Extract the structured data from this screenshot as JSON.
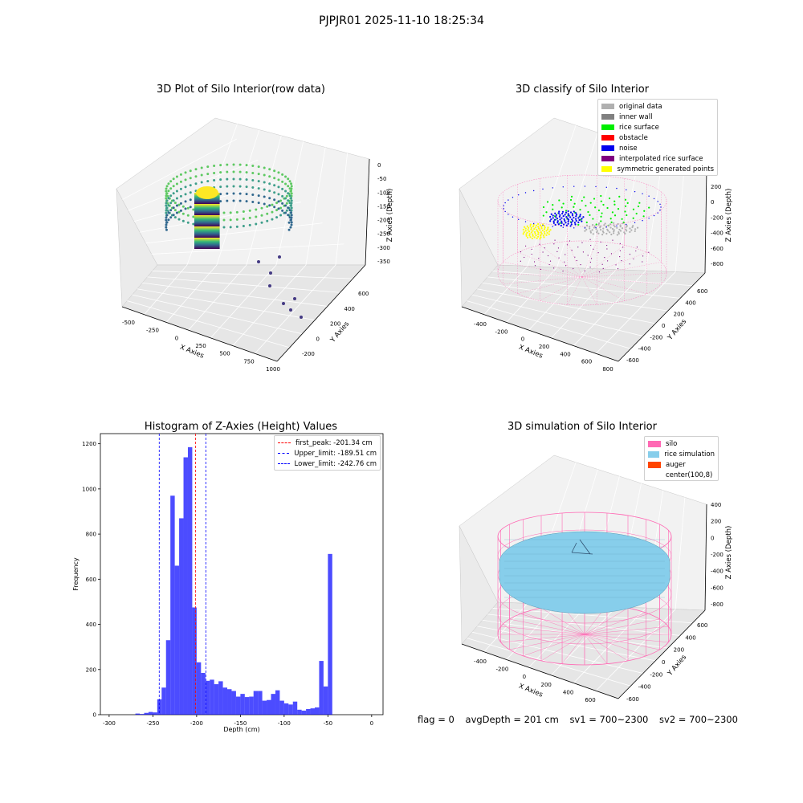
{
  "figure_title": "PJPJR01 2025-11-10 18:25:34",
  "status_line": {
    "flag": "flag = 0",
    "avg_depth": "avgDepth = 201 cm",
    "sv1": "sv1 = 700~2300",
    "sv2": "sv2 = 700~2300"
  },
  "chart_data": [
    {
      "type": "scatter",
      "title": "3D Plot of Silo Interior(row data)",
      "xlabel": "X Axies",
      "ylabel": "Y Axies",
      "zlabel": "Z Axies (Depth)",
      "x_ticks": [
        "-500",
        "-250",
        "0",
        "250",
        "500",
        "750",
        "1000"
      ],
      "y_ticks": [
        "-200",
        "0",
        "200",
        "400",
        "600"
      ],
      "z_ticks": [
        "0",
        "-50",
        "-100",
        "-150",
        "-200",
        "-250",
        "-300",
        "-350"
      ],
      "colormap": "viridis"
    },
    {
      "type": "scatter",
      "title": "3D classify of Silo Interior",
      "xlabel": "X Axies",
      "ylabel": "Y Axies",
      "zlabel": "Z Axies (Depth)",
      "x_ticks": [
        "-400",
        "-200",
        "0",
        "200",
        "400",
        "600",
        "800"
      ],
      "y_ticks": [
        "-600",
        "-400",
        "-200",
        "0",
        "200",
        "400",
        "600"
      ],
      "z_ticks": [
        "200",
        "0",
        "-200",
        "-400",
        "-600",
        "-800"
      ],
      "legend_position": "top-right",
      "legend": [
        {
          "label": "original data",
          "color": "#b0b0b0"
        },
        {
          "label": "inner wall",
          "color": "#808080"
        },
        {
          "label": "rice surface",
          "color": "#00ee00"
        },
        {
          "label": "obstacle",
          "color": "#ff0000"
        },
        {
          "label": "noise",
          "color": "#0000ee"
        },
        {
          "label": "interpolated rice surface",
          "color": "#800080"
        },
        {
          "label": "symmetric generated points",
          "color": "#ffff00"
        }
      ]
    },
    {
      "type": "bar",
      "title": "Histogram of Z-Axies (Height) Values",
      "xlabel": "Depth (cm)",
      "ylabel": "Frequency",
      "xlim": [
        -310,
        13
      ],
      "ylim": [
        0,
        1245
      ],
      "x_ticks": [
        -300,
        -250,
        -200,
        -150,
        -100,
        -50,
        0
      ],
      "y_ticks": [
        0,
        200,
        400,
        600,
        800,
        1000,
        1200
      ],
      "bar_color": "#0000ff",
      "bins": [
        [
          -270,
          -265,
          5
        ],
        [
          -265,
          -260,
          3
        ],
        [
          -260,
          -255,
          8
        ],
        [
          -255,
          -250,
          12
        ],
        [
          -250,
          -245,
          10
        ],
        [
          -245,
          -240,
          68
        ],
        [
          -240,
          -235,
          120
        ],
        [
          -235,
          -230,
          330
        ],
        [
          -230,
          -225,
          970
        ],
        [
          -225,
          -220,
          660
        ],
        [
          -220,
          -215,
          870
        ],
        [
          -215,
          -210,
          1140
        ],
        [
          -210,
          -205,
          1185
        ],
        [
          -205,
          -200,
          475
        ],
        [
          -200,
          -195,
          232
        ],
        [
          -195,
          -190,
          185
        ],
        [
          -190,
          -185,
          150
        ],
        [
          -185,
          -180,
          155
        ],
        [
          -180,
          -175,
          135
        ],
        [
          -175,
          -170,
          148
        ],
        [
          -170,
          -165,
          120
        ],
        [
          -165,
          -160,
          113
        ],
        [
          -160,
          -155,
          105
        ],
        [
          -155,
          -150,
          80
        ],
        [
          -150,
          -145,
          92
        ],
        [
          -145,
          -140,
          78
        ],
        [
          -140,
          -135,
          80
        ],
        [
          -135,
          -130,
          105
        ],
        [
          -130,
          -125,
          105
        ],
        [
          -125,
          -120,
          62
        ],
        [
          -120,
          -115,
          65
        ],
        [
          -115,
          -110,
          92
        ],
        [
          -110,
          -105,
          108
        ],
        [
          -105,
          -100,
          62
        ],
        [
          -100,
          -95,
          50
        ],
        [
          -95,
          -90,
          45
        ],
        [
          -90,
          -85,
          58
        ],
        [
          -85,
          -80,
          22
        ],
        [
          -80,
          -75,
          18
        ],
        [
          -75,
          -70,
          25
        ],
        [
          -70,
          -65,
          28
        ],
        [
          -65,
          -60,
          32
        ],
        [
          -60,
          -55,
          238
        ],
        [
          -55,
          -50,
          125
        ],
        [
          -50,
          -45,
          712
        ]
      ],
      "vlines": [
        {
          "label": "first_peak: -201.34 cm",
          "x": -201.34,
          "color": "#ff0000"
        },
        {
          "label": "Upper_limit: -189.51 cm",
          "x": -189.51,
          "color": "#0000ff"
        },
        {
          "label": "Lower_limit: -242.76 cm",
          "x": -242.76,
          "color": "#0000ff"
        }
      ],
      "legend_position": "top-right"
    },
    {
      "type": "scatter",
      "title": "3D simulation of Silo Interior",
      "xlabel": "X Axies",
      "ylabel": "Y Axies",
      "zlabel": "Z Axies (Depth)",
      "x_ticks": [
        "-400",
        "-200",
        "0",
        "200",
        "400",
        "600"
      ],
      "y_ticks": [
        "-600",
        "-400",
        "-200",
        "0",
        "200",
        "400",
        "600"
      ],
      "z_ticks": [
        "400",
        "200",
        "0",
        "-200",
        "-400",
        "-600",
        "-800"
      ],
      "legend_position": "top-right",
      "legend": [
        {
          "label": "silo",
          "color": "#ff69b4"
        },
        {
          "label": "rice simulation",
          "color": "#87ceeb"
        },
        {
          "label": "auger",
          "color": "#ff4500"
        },
        {
          "label": "center(100,8)",
          "color": "#ffffff"
        }
      ]
    }
  ]
}
